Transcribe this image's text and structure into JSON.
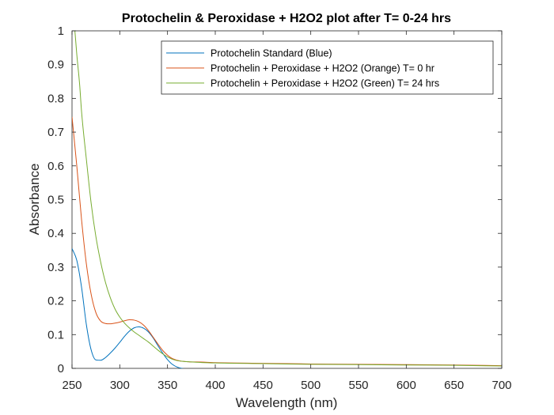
{
  "chart_data": {
    "type": "line",
    "title": "Protochelin & Peroxidase + H2O2 plot after T= 0-24 hrs",
    "xlabel": "Wavelength (nm)",
    "ylabel": "Absorbance",
    "xlim": [
      250,
      700
    ],
    "ylim": [
      0,
      1
    ],
    "xticks": [
      250,
      300,
      350,
      400,
      450,
      500,
      550,
      600,
      650,
      700
    ],
    "yticks": [
      0,
      0.1,
      0.2,
      0.3,
      0.4,
      0.5,
      0.6,
      0.7,
      0.8,
      0.9,
      1
    ],
    "xtick_labels": [
      "250",
      "300",
      "350",
      "400",
      "450",
      "500",
      "550",
      "600",
      "650",
      "700"
    ],
    "ytick_labels": [
      "0",
      "0.1",
      "0.2",
      "0.3",
      "0.4",
      "0.5",
      "0.6",
      "0.7",
      "0.8",
      "0.9",
      "1"
    ],
    "grid": false,
    "legend_position": "top-right",
    "series": [
      {
        "name": "Protochelin Standard (Blue)",
        "color": "#0072BD",
        "x": [
          250,
          255,
          260,
          265,
          270,
          275,
          280,
          285,
          290,
          295,
          300,
          305,
          310,
          315,
          320,
          325,
          330,
          335,
          340,
          345,
          350,
          355,
          360,
          365,
          370,
          375,
          380,
          400,
          450,
          500,
          550,
          600,
          650,
          700
        ],
        "y": [
          0.355,
          0.32,
          0.24,
          0.13,
          0.055,
          0.025,
          0.024,
          0.032,
          0.045,
          0.06,
          0.077,
          0.095,
          0.11,
          0.12,
          0.123,
          0.119,
          0.108,
          0.09,
          0.067,
          0.045,
          0.026,
          0.012,
          0.004,
          0.0,
          -0.002,
          -0.003,
          -0.003,
          -0.003,
          -0.004,
          -0.004,
          -0.004,
          -0.004,
          -0.004,
          -0.004
        ]
      },
      {
        "name": "Protochelin + Peroxidase + H2O2 (Orange) T= 0 hr",
        "color": "#D95319",
        "x": [
          250,
          255,
          260,
          265,
          270,
          275,
          280,
          285,
          290,
          295,
          300,
          305,
          310,
          315,
          320,
          325,
          330,
          335,
          340,
          345,
          350,
          355,
          360,
          365,
          370,
          375,
          380,
          400,
          450,
          500,
          550,
          600,
          650,
          700
        ],
        "y": [
          0.745,
          0.6,
          0.44,
          0.31,
          0.22,
          0.165,
          0.14,
          0.133,
          0.132,
          0.134,
          0.137,
          0.141,
          0.144,
          0.143,
          0.138,
          0.128,
          0.112,
          0.092,
          0.072,
          0.053,
          0.039,
          0.029,
          0.024,
          0.021,
          0.02,
          0.019,
          0.019,
          0.017,
          0.015,
          0.013,
          0.012,
          0.011,
          0.01,
          0.008
        ]
      },
      {
        "name": "Protochelin + Peroxidase + H2O2 (Green) T= 24 hrs",
        "color": "#77AC30",
        "x": [
          250,
          253,
          255,
          258,
          260,
          265,
          270,
          275,
          280,
          285,
          290,
          295,
          300,
          305,
          310,
          315,
          320,
          325,
          330,
          335,
          340,
          345,
          350,
          355,
          360,
          365,
          370,
          375,
          380,
          400,
          450,
          500,
          550,
          600,
          650,
          700
        ],
        "y": [
          1.08,
          1.0,
          0.93,
          0.84,
          0.76,
          0.62,
          0.49,
          0.39,
          0.315,
          0.255,
          0.21,
          0.176,
          0.152,
          0.134,
          0.12,
          0.108,
          0.098,
          0.088,
          0.078,
          0.066,
          0.054,
          0.043,
          0.034,
          0.027,
          0.023,
          0.021,
          0.02,
          0.019,
          0.018,
          0.016,
          0.014,
          0.012,
          0.011,
          0.01,
          0.009,
          0.007
        ]
      }
    ]
  }
}
